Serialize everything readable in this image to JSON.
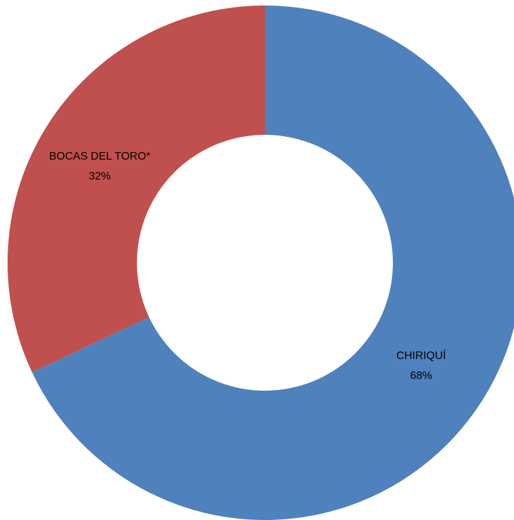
{
  "chart_data": {
    "type": "pie",
    "variant": "donut",
    "title": "",
    "start_angle": "top",
    "direction": "clockwise",
    "slices": [
      {
        "label": "CHIRIQUÍ",
        "percent_label": "68%",
        "value": 68,
        "color": "#4F81BD",
        "label_placement": "lower-right"
      },
      {
        "label": "BOCAS DEL TORO*",
        "percent_label": "32%",
        "value": 32,
        "color": "#C0504D",
        "label_placement": "upper-left"
      }
    ]
  }
}
